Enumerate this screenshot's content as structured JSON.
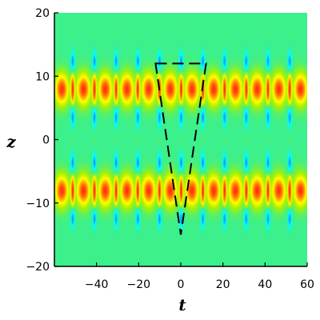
{
  "chart_data": {
    "type": "heatmap",
    "title": "",
    "xlabel": "t",
    "ylabel": "z",
    "xlim": [
      -60,
      60
    ],
    "ylim": [
      -20,
      20
    ],
    "x_ticks": [
      {
        "value": -40,
        "label": "−40"
      },
      {
        "value": -20,
        "label": "−20"
      },
      {
        "value": 0,
        "label": "0"
      },
      {
        "value": 20,
        "label": "20"
      },
      {
        "value": 40,
        "label": "40"
      },
      {
        "value": 60,
        "label": "60"
      }
    ],
    "y_ticks": [
      {
        "value": 20,
        "label": "20"
      },
      {
        "value": 10,
        "label": "10"
      },
      {
        "value": 0,
        "label": "0"
      },
      {
        "value": -10,
        "label": "−10"
      },
      {
        "value": -20,
        "label": "−20"
      }
    ],
    "field": {
      "description_source": "breather chains (density plot)",
      "chains": [
        {
          "z_center": 8,
          "period_t": 10.3
        },
        {
          "z_center": -8,
          "period_t": 10.3
        }
      ],
      "colormap": [
        "#1a3cff",
        "#00ffff",
        "#3cf08c",
        "#aaf000",
        "#ffff00",
        "#ff9900",
        "#ff1a1a"
      ]
    },
    "annotation_triangle": {
      "vertices": [
        [
          -12,
          12
        ],
        [
          12,
          12
        ],
        [
          0,
          -15
        ]
      ],
      "style": "dashed",
      "color": "#000000"
    }
  }
}
